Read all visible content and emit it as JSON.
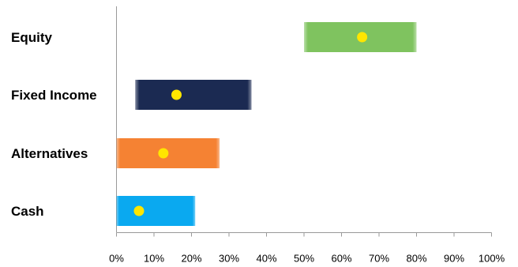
{
  "chart_data": {
    "type": "bar",
    "subtype": "floating-range-with-marker",
    "categories": [
      "Equity",
      "Fixed Income",
      "Alternatives",
      "Cash"
    ],
    "ranges": [
      {
        "category": "Equity",
        "min": 50,
        "max": 80,
        "marker": 65.5,
        "color": "#7fc35f"
      },
      {
        "category": "Fixed Income",
        "min": 5,
        "max": 36,
        "marker": 16,
        "color": "#1b2a52"
      },
      {
        "category": "Alternatives",
        "min": 0,
        "max": 27.5,
        "marker": 12.5,
        "color": "#f58233"
      },
      {
        "category": "Cash",
        "min": 0,
        "max": 21,
        "marker": 6,
        "color": "#0aa9f0"
      }
    ],
    "marker_color": "#ffe600",
    "xlim": [
      0,
      100
    ],
    "x_ticks": [
      "0%",
      "10%",
      "20%",
      "30%",
      "40%",
      "50%",
      "60%",
      "70%",
      "80%",
      "90%",
      "100%"
    ],
    "grid": false,
    "legend": "none"
  }
}
